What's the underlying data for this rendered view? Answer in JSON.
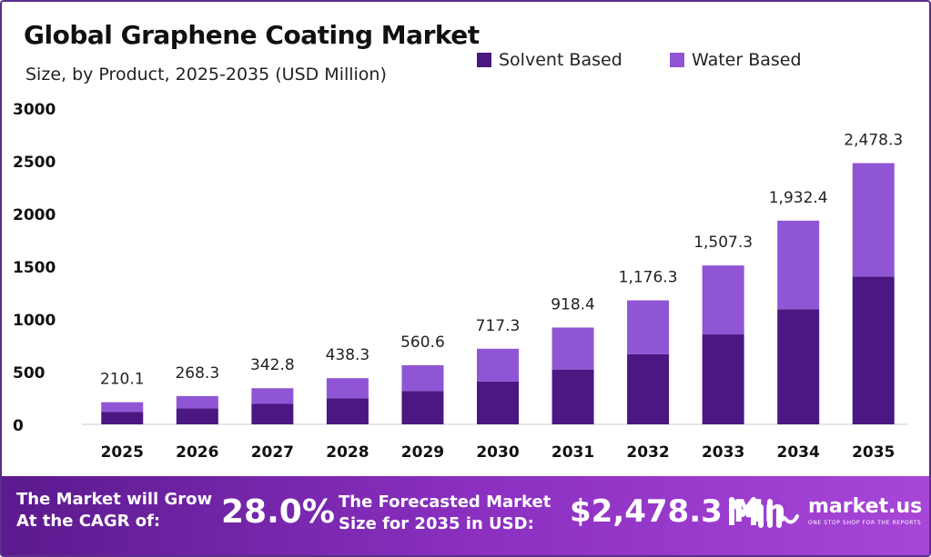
{
  "title": "Global Graphene Coating Market",
  "subtitle": "Size, by Product, 2025-2035 (USD Million)",
  "colors": {
    "solvent": "#4b1782",
    "water": "#9055d4",
    "axis_text": "#111111"
  },
  "chart_data": {
    "type": "bar",
    "stacked": true,
    "categories": [
      "2025",
      "2026",
      "2027",
      "2028",
      "2029",
      "2030",
      "2031",
      "2032",
      "2033",
      "2034",
      "2035"
    ],
    "series": [
      {
        "name": "Solvent Based",
        "values": [
          119,
          152,
          194,
          248,
          317,
          406,
          520,
          666,
          853,
          1092,
          1402
        ]
      },
      {
        "name": "Water Based",
        "values": [
          91.1,
          116.3,
          148.8,
          190.3,
          243.6,
          311.3,
          398.4,
          510.3,
          654.3,
          840.4,
          1076.3
        ]
      }
    ],
    "totals": [
      210.1,
      268.3,
      342.8,
      438.3,
      560.6,
      717.3,
      918.4,
      1176.3,
      1507.3,
      1932.4,
      2478.3
    ],
    "total_labels": [
      "210.1",
      "268.3",
      "342.8",
      "438.3",
      "560.6",
      "717.3",
      "918.4",
      "1,176.3",
      "1,507.3",
      "1,932.4",
      "2,478.3"
    ],
    "yticks": [
      0,
      500,
      1000,
      1500,
      2000,
      2500,
      3000
    ],
    "ylim": [
      0,
      3000
    ],
    "legend_position": "top-right",
    "grid": false
  },
  "footer": {
    "cagr_text_line1": "The Market will Grow",
    "cagr_text_line2": "At the CAGR of:",
    "cagr_value": "28.0%",
    "forecast_text_line1": "The Forecasted Market",
    "forecast_text_line2": "Size for 2035 in USD:",
    "forecast_value": "$2,478.3 Mn",
    "brand_name": "market.us",
    "brand_tagline": "ONE STOP SHOP FOR THE REPORTS"
  }
}
